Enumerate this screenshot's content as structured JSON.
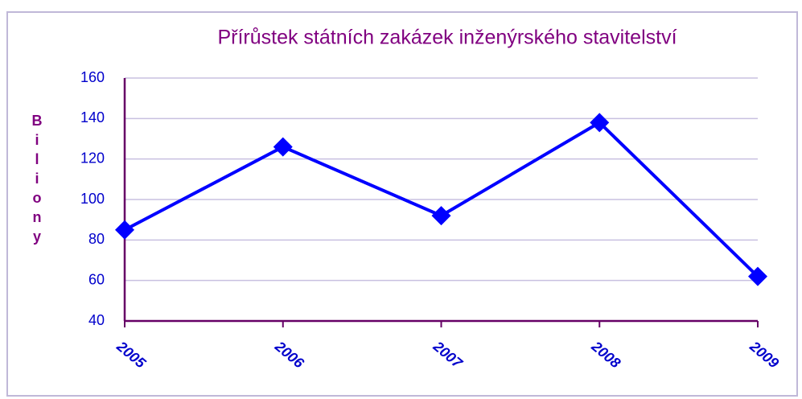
{
  "chart_data": {
    "type": "line",
    "title": "Přírůstek státních zakázek inženýrského stavitelství",
    "y_label": "Biliony",
    "categories": [
      "2005",
      "2006",
      "2007",
      "2008",
      "2009"
    ],
    "series": [
      {
        "name": "Biliony",
        "color": "#0000ff",
        "values": [
          85,
          126,
          92,
          138,
          62
        ]
      }
    ],
    "ylim": [
      40,
      160
    ],
    "yticks": [
      40,
      60,
      80,
      100,
      120,
      140,
      160
    ],
    "grid": true
  }
}
